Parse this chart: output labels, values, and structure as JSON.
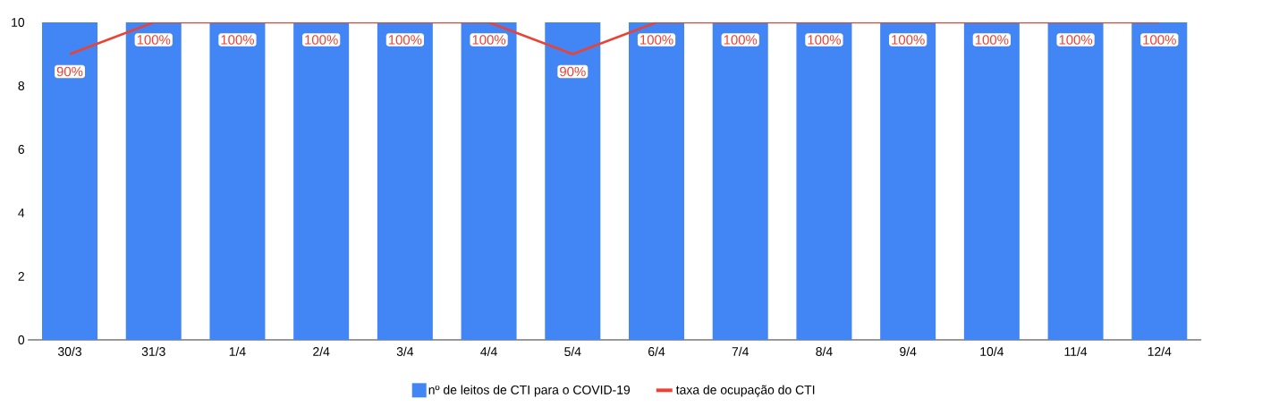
{
  "chart_data": {
    "type": "bar",
    "categories": [
      "30/3",
      "31/3",
      "1/4",
      "2/4",
      "3/4",
      "4/4",
      "5/4",
      "6/4",
      "7/4",
      "8/4",
      "9/4",
      "10/4",
      "11/4",
      "12/4"
    ],
    "series": [
      {
        "name": "nº de leitos de CTI para o COVID-19",
        "color": "#4285f4",
        "values": [
          10,
          10,
          10,
          10,
          10,
          10,
          10,
          10,
          10,
          10,
          10,
          10,
          10,
          10
        ]
      },
      {
        "name": "taxa de ocupação do CTI",
        "type": "line",
        "axis": "y2",
        "color": "#ea4335",
        "values": [
          90,
          100,
          100,
          100,
          100,
          100,
          90,
          100,
          100,
          100,
          100,
          100,
          100,
          100
        ],
        "value_labels": [
          "90%",
          "100%",
          "100%",
          "100%",
          "100%",
          "100%",
          "90%",
          "100%",
          "100%",
          "100%",
          "100%",
          "100%",
          "100%",
          "100%"
        ]
      }
    ],
    "ylim": [
      0,
      10
    ],
    "yticks": [
      0,
      2,
      4,
      6,
      8,
      10
    ],
    "y2lim": [
      0,
      100
    ],
    "grid": false,
    "legend": "bottom",
    "marker": "none",
    "line_style": "solid"
  }
}
